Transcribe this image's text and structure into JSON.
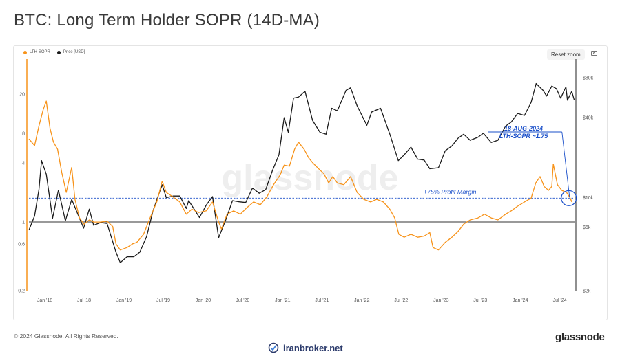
{
  "page": {
    "title": "BTC: Long Term Holder SOPR (14D-MA)"
  },
  "toolbar": {
    "reset_zoom": "Reset zoom"
  },
  "legend": [
    {
      "label": "LTH-SOPR",
      "color": "#f7931a"
    },
    {
      "label": "Price [USD]",
      "color": "#1a1a1a"
    }
  ],
  "watermark": "glassnode",
  "footer": {
    "copyright": "© 2024 Glassnode. All Rights Reserved.",
    "brand": "glassnode",
    "site": "iranbroker.net"
  },
  "chart_data": {
    "type": "line",
    "title": "BTC: Long Term Holder SOPR (14D-MA)",
    "x_range": [
      "2017-10-20",
      "2024-09-10"
    ],
    "x_ticks": [
      {
        "date": "2018-01-01",
        "label": "Jan '18"
      },
      {
        "date": "2018-07-01",
        "label": "Jul '18"
      },
      {
        "date": "2019-01-01",
        "label": "Jan '19"
      },
      {
        "date": "2019-07-01",
        "label": "Jul '19"
      },
      {
        "date": "2020-01-01",
        "label": "Jan '20"
      },
      {
        "date": "2020-07-01",
        "label": "Jul '20"
      },
      {
        "date": "2021-01-01",
        "label": "Jan '21"
      },
      {
        "date": "2021-07-01",
        "label": "Jul '21"
      },
      {
        "date": "2022-01-01",
        "label": "Jan '22"
      },
      {
        "date": "2022-07-01",
        "label": "Jul '22"
      },
      {
        "date": "2023-01-01",
        "label": "Jan '23"
      },
      {
        "date": "2023-07-01",
        "label": "Jul '23"
      },
      {
        "date": "2024-01-01",
        "label": "Jan '24"
      },
      {
        "date": "2024-07-01",
        "label": "Jul '24"
      }
    ],
    "left_axis": {
      "scale": "log",
      "range": [
        0.2,
        40
      ],
      "ticks": [
        {
          "v": 0.2,
          "label": "0.2"
        },
        {
          "v": 0.6,
          "label": "0.6"
        },
        {
          "v": 1,
          "label": "1"
        },
        {
          "v": 4,
          "label": "4"
        },
        {
          "v": 8,
          "label": "8"
        },
        {
          "v": 20,
          "label": "20"
        }
      ]
    },
    "right_axis": {
      "scale": "log",
      "range": [
        2000,
        100000
      ],
      "ticks": [
        {
          "v": 2000,
          "label": "$2k"
        },
        {
          "v": 6000,
          "label": "$6k"
        },
        {
          "v": 10000,
          "label": "$10k"
        },
        {
          "v": 40000,
          "label": "$40k"
        },
        {
          "v": 80000,
          "label": "$80k"
        }
      ]
    },
    "reference_lines": [
      {
        "value": 1,
        "axis": "left",
        "style": "solid",
        "color": "#333333"
      },
      {
        "value": 1.75,
        "axis": "left",
        "style": "dashed",
        "color": "#1a4fc9",
        "label": "+75% Profit Margin"
      }
    ],
    "annotation": {
      "date_text": "18-AUG-2024",
      "value_text": "LTH-SOPR ~1.75",
      "date": "2024-08-18",
      "value": 1.75,
      "color": "#1a4fc9"
    },
    "series": [
      {
        "name": "LTH-SOPR",
        "axis": "left",
        "color": "#f7931a",
        "points": [
          [
            "2017-10-20",
            7.0
          ],
          [
            "2017-11-15",
            6.0
          ],
          [
            "2017-12-05",
            9.5
          ],
          [
            "2017-12-25",
            14.0
          ],
          [
            "2018-01-08",
            17.0
          ],
          [
            "2018-01-25",
            9.0
          ],
          [
            "2018-02-10",
            6.5
          ],
          [
            "2018-03-01",
            5.5
          ],
          [
            "2018-03-20",
            3.2
          ],
          [
            "2018-04-10",
            2.0
          ],
          [
            "2018-05-05",
            3.6
          ],
          [
            "2018-05-20",
            1.7
          ],
          [
            "2018-06-10",
            1.1
          ],
          [
            "2018-07-01",
            0.95
          ],
          [
            "2018-07-25",
            1.05
          ],
          [
            "2018-08-15",
            1.0
          ],
          [
            "2018-09-15",
            1.0
          ],
          [
            "2018-10-15",
            1.02
          ],
          [
            "2018-11-10",
            0.9
          ],
          [
            "2018-11-25",
            0.6
          ],
          [
            "2018-12-15",
            0.52
          ],
          [
            "2019-01-15",
            0.55
          ],
          [
            "2019-02-10",
            0.6
          ],
          [
            "2019-03-01",
            0.62
          ],
          [
            "2019-04-01",
            0.75
          ],
          [
            "2019-05-01",
            1.1
          ],
          [
            "2019-06-01",
            1.6
          ],
          [
            "2019-06-26",
            2.6
          ],
          [
            "2019-07-15",
            2.0
          ],
          [
            "2019-08-15",
            1.8
          ],
          [
            "2019-09-15",
            1.6
          ],
          [
            "2019-10-15",
            1.2
          ],
          [
            "2019-11-10",
            1.35
          ],
          [
            "2019-12-10",
            1.25
          ],
          [
            "2020-01-15",
            1.3
          ],
          [
            "2020-02-13",
            1.6
          ],
          [
            "2020-03-12",
            1.0
          ],
          [
            "2020-03-25",
            0.85
          ],
          [
            "2020-04-20",
            1.2
          ],
          [
            "2020-05-20",
            1.3
          ],
          [
            "2020-06-20",
            1.2
          ],
          [
            "2020-07-20",
            1.4
          ],
          [
            "2020-08-20",
            1.6
          ],
          [
            "2020-09-20",
            1.5
          ],
          [
            "2020-10-20",
            1.8
          ],
          [
            "2020-11-20",
            2.4
          ],
          [
            "2020-12-20",
            3.0
          ],
          [
            "2021-01-08",
            3.8
          ],
          [
            "2021-02-01",
            3.7
          ],
          [
            "2021-02-25",
            5.5
          ],
          [
            "2021-03-15",
            6.5
          ],
          [
            "2021-04-10",
            5.5
          ],
          [
            "2021-05-01",
            4.5
          ],
          [
            "2021-05-20",
            4.0
          ],
          [
            "2021-06-15",
            3.5
          ],
          [
            "2021-07-10",
            3.1
          ],
          [
            "2021-08-01",
            2.5
          ],
          [
            "2021-08-20",
            2.9
          ],
          [
            "2021-09-10",
            2.5
          ],
          [
            "2021-10-10",
            2.4
          ],
          [
            "2021-11-10",
            2.9
          ],
          [
            "2021-12-10",
            2.0
          ],
          [
            "2022-01-10",
            1.7
          ],
          [
            "2022-02-10",
            1.6
          ],
          [
            "2022-03-10",
            1.7
          ],
          [
            "2022-04-10",
            1.6
          ],
          [
            "2022-05-10",
            1.35
          ],
          [
            "2022-06-01",
            1.1
          ],
          [
            "2022-06-20",
            0.75
          ],
          [
            "2022-07-15",
            0.7
          ],
          [
            "2022-08-15",
            0.75
          ],
          [
            "2022-09-15",
            0.7
          ],
          [
            "2022-10-15",
            0.72
          ],
          [
            "2022-11-10",
            0.78
          ],
          [
            "2022-11-25",
            0.55
          ],
          [
            "2022-12-20",
            0.52
          ],
          [
            "2023-01-20",
            0.62
          ],
          [
            "2023-02-20",
            0.7
          ],
          [
            "2023-03-20",
            0.8
          ],
          [
            "2023-04-15",
            0.95
          ],
          [
            "2023-05-15",
            1.05
          ],
          [
            "2023-06-20",
            1.1
          ],
          [
            "2023-07-20",
            1.2
          ],
          [
            "2023-08-20",
            1.1
          ],
          [
            "2023-09-20",
            1.05
          ],
          [
            "2023-10-25",
            1.2
          ],
          [
            "2023-11-20",
            1.3
          ],
          [
            "2023-12-20",
            1.45
          ],
          [
            "2024-01-20",
            1.6
          ],
          [
            "2024-02-20",
            1.75
          ],
          [
            "2024-03-12",
            2.5
          ],
          [
            "2024-04-01",
            2.9
          ],
          [
            "2024-04-20",
            2.3
          ],
          [
            "2024-05-10",
            2.1
          ],
          [
            "2024-05-25",
            2.3
          ],
          [
            "2024-06-01",
            3.9
          ],
          [
            "2024-06-20",
            2.4
          ],
          [
            "2024-07-10",
            2.1
          ],
          [
            "2024-08-01",
            2.0
          ],
          [
            "2024-08-18",
            1.75
          ],
          [
            "2024-08-25",
            1.6
          ]
        ]
      },
      {
        "name": "Price [USD]",
        "axis": "right",
        "color": "#1a1a1a",
        "points": [
          [
            "2017-10-20",
            5700
          ],
          [
            "2017-11-15",
            7300
          ],
          [
            "2017-12-05",
            11500
          ],
          [
            "2017-12-17",
            19000
          ],
          [
            "2018-01-08",
            15000
          ],
          [
            "2018-02-06",
            7000
          ],
          [
            "2018-03-05",
            11400
          ],
          [
            "2018-04-06",
            6700
          ],
          [
            "2018-05-05",
            9700
          ],
          [
            "2018-06-29",
            5900
          ],
          [
            "2018-07-25",
            8200
          ],
          [
            "2018-08-14",
            6200
          ],
          [
            "2018-09-15",
            6500
          ],
          [
            "2018-10-15",
            6400
          ],
          [
            "2018-11-25",
            3900
          ],
          [
            "2018-12-15",
            3250
          ],
          [
            "2019-01-15",
            3600
          ],
          [
            "2019-02-15",
            3600
          ],
          [
            "2019-03-15",
            3900
          ],
          [
            "2019-04-15",
            5100
          ],
          [
            "2019-05-15",
            8000
          ],
          [
            "2019-06-26",
            12500
          ],
          [
            "2019-07-15",
            10000
          ],
          [
            "2019-08-15",
            10300
          ],
          [
            "2019-09-15",
            10300
          ],
          [
            "2019-10-15",
            8300
          ],
          [
            "2019-10-26",
            9500
          ],
          [
            "2019-12-15",
            7100
          ],
          [
            "2020-01-15",
            8800
          ],
          [
            "2020-02-13",
            10200
          ],
          [
            "2020-03-12",
            5000
          ],
          [
            "2020-04-15",
            6900
          ],
          [
            "2020-05-15",
            9500
          ],
          [
            "2020-06-15",
            9300
          ],
          [
            "2020-07-15",
            9200
          ],
          [
            "2020-08-15",
            11800
          ],
          [
            "2020-09-15",
            10800
          ],
          [
            "2020-10-15",
            11500
          ],
          [
            "2020-11-15",
            16000
          ],
          [
            "2020-12-15",
            21000
          ],
          [
            "2021-01-08",
            40000
          ],
          [
            "2021-01-27",
            31000
          ],
          [
            "2021-02-20",
            56000
          ],
          [
            "2021-03-15",
            57000
          ],
          [
            "2021-04-14",
            63000
          ],
          [
            "2021-05-19",
            38000
          ],
          [
            "2021-06-22",
            31000
          ],
          [
            "2021-07-20",
            30000
          ],
          [
            "2021-08-15",
            47000
          ],
          [
            "2021-09-10",
            45000
          ],
          [
            "2021-10-20",
            64000
          ],
          [
            "2021-11-10",
            67000
          ],
          [
            "2021-12-10",
            49000
          ],
          [
            "2022-01-24",
            35000
          ],
          [
            "2022-02-15",
            44000
          ],
          [
            "2022-03-28",
            47000
          ],
          [
            "2022-05-10",
            30000
          ],
          [
            "2022-06-18",
            19000
          ],
          [
            "2022-07-15",
            21000
          ],
          [
            "2022-08-15",
            24000
          ],
          [
            "2022-09-15",
            19500
          ],
          [
            "2022-10-15",
            19200
          ],
          [
            "2022-11-10",
            16500
          ],
          [
            "2022-12-20",
            16800
          ],
          [
            "2023-01-20",
            22500
          ],
          [
            "2023-02-20",
            24500
          ],
          [
            "2023-03-20",
            28000
          ],
          [
            "2023-04-15",
            30000
          ],
          [
            "2023-05-15",
            27000
          ],
          [
            "2023-06-20",
            28500
          ],
          [
            "2023-07-15",
            30500
          ],
          [
            "2023-08-20",
            26000
          ],
          [
            "2023-09-20",
            27000
          ],
          [
            "2023-10-25",
            34500
          ],
          [
            "2023-11-20",
            37000
          ],
          [
            "2023-12-20",
            43000
          ],
          [
            "2024-01-20",
            41500
          ],
          [
            "2024-02-20",
            52000
          ],
          [
            "2024-03-14",
            72000
          ],
          [
            "2024-04-15",
            64000
          ],
          [
            "2024-05-01",
            58000
          ],
          [
            "2024-05-25",
            69000
          ],
          [
            "2024-06-15",
            66000
          ],
          [
            "2024-07-05",
            56000
          ],
          [
            "2024-07-29",
            68000
          ],
          [
            "2024-08-05",
            54000
          ],
          [
            "2024-08-25",
            63000
          ],
          [
            "2024-09-06",
            54000
          ]
        ]
      }
    ]
  }
}
